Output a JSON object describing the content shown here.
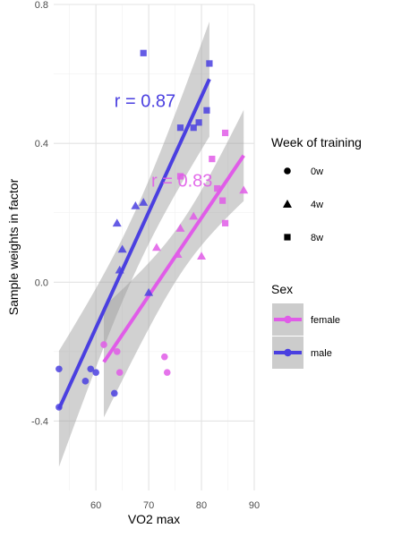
{
  "chart_data": {
    "type": "scatter",
    "title": "",
    "xlabel": "VO2 max",
    "ylabel": "Sample weights in factor",
    "xlim": [
      52,
      90
    ],
    "ylim": [
      -0.6,
      0.8
    ],
    "x_ticks": [
      60,
      70,
      80,
      90
    ],
    "x_tick_labels": [
      "60",
      "70",
      "80",
      "90"
    ],
    "y_ticks": [
      -0.4,
      0.0,
      0.4,
      0.8
    ],
    "y_tick_labels": [
      "-0.4",
      "0.0",
      "0.4",
      "0.8"
    ],
    "grid": true,
    "legend_placement": "right",
    "shape_legend": {
      "title": "Week of training",
      "items": [
        {
          "label": "0w",
          "shape": "circle"
        },
        {
          "label": "4w",
          "shape": "triangle"
        },
        {
          "label": "8w",
          "shape": "square"
        }
      ]
    },
    "color_legend": {
      "title": "Sex",
      "items": [
        {
          "label": "female",
          "color": "#E05CE8"
        },
        {
          "label": "male",
          "color": "#4A3FE0"
        }
      ]
    },
    "series": [
      {
        "name": "female",
        "color": "#E05CE8",
        "correlation_label": "r = 0.83",
        "fit": {
          "x": [
            61.5,
            88
          ],
          "y": [
            -0.23,
            0.365
          ]
        },
        "points": [
          {
            "x": 61.5,
            "y": -0.18,
            "shape": "circle"
          },
          {
            "x": 64,
            "y": -0.2,
            "shape": "circle"
          },
          {
            "x": 64.5,
            "y": -0.26,
            "shape": "circle"
          },
          {
            "x": 73,
            "y": -0.215,
            "shape": "circle"
          },
          {
            "x": 73.5,
            "y": -0.26,
            "shape": "circle"
          },
          {
            "x": 71.5,
            "y": 0.1,
            "shape": "triangle"
          },
          {
            "x": 75.5,
            "y": 0.08,
            "shape": "triangle"
          },
          {
            "x": 76,
            "y": 0.155,
            "shape": "triangle"
          },
          {
            "x": 78.5,
            "y": 0.19,
            "shape": "triangle"
          },
          {
            "x": 80,
            "y": 0.075,
            "shape": "triangle"
          },
          {
            "x": 88,
            "y": 0.265,
            "shape": "triangle"
          },
          {
            "x": 76,
            "y": 0.305,
            "shape": "square"
          },
          {
            "x": 82,
            "y": 0.355,
            "shape": "square"
          },
          {
            "x": 83,
            "y": 0.27,
            "shape": "square"
          },
          {
            "x": 84,
            "y": 0.235,
            "shape": "square"
          },
          {
            "x": 84.5,
            "y": 0.43,
            "shape": "square"
          },
          {
            "x": 84.5,
            "y": 0.17,
            "shape": "square"
          }
        ]
      },
      {
        "name": "male",
        "color": "#4A3FE0",
        "correlation_label": "r = 0.87",
        "fit": {
          "x": [
            53,
            81.5
          ],
          "y": [
            -0.365,
            0.585
          ]
        },
        "points": [
          {
            "x": 53,
            "y": -0.25,
            "shape": "circle"
          },
          {
            "x": 53,
            "y": -0.36,
            "shape": "circle"
          },
          {
            "x": 58,
            "y": -0.285,
            "shape": "circle"
          },
          {
            "x": 59,
            "y": -0.25,
            "shape": "circle"
          },
          {
            "x": 60,
            "y": -0.26,
            "shape": "circle"
          },
          {
            "x": 63.5,
            "y": -0.32,
            "shape": "circle"
          },
          {
            "x": 64,
            "y": 0.17,
            "shape": "triangle"
          },
          {
            "x": 64.5,
            "y": 0.035,
            "shape": "triangle"
          },
          {
            "x": 65,
            "y": 0.095,
            "shape": "triangle"
          },
          {
            "x": 67.5,
            "y": 0.22,
            "shape": "triangle"
          },
          {
            "x": 69,
            "y": 0.23,
            "shape": "triangle"
          },
          {
            "x": 70,
            "y": -0.03,
            "shape": "triangle"
          },
          {
            "x": 69,
            "y": 0.66,
            "shape": "square"
          },
          {
            "x": 76,
            "y": 0.445,
            "shape": "square"
          },
          {
            "x": 78.5,
            "y": 0.445,
            "shape": "square"
          },
          {
            "x": 79.5,
            "y": 0.46,
            "shape": "square"
          },
          {
            "x": 81,
            "y": 0.495,
            "shape": "square"
          },
          {
            "x": 81.5,
            "y": 0.63,
            "shape": "square"
          }
        ]
      }
    ]
  }
}
